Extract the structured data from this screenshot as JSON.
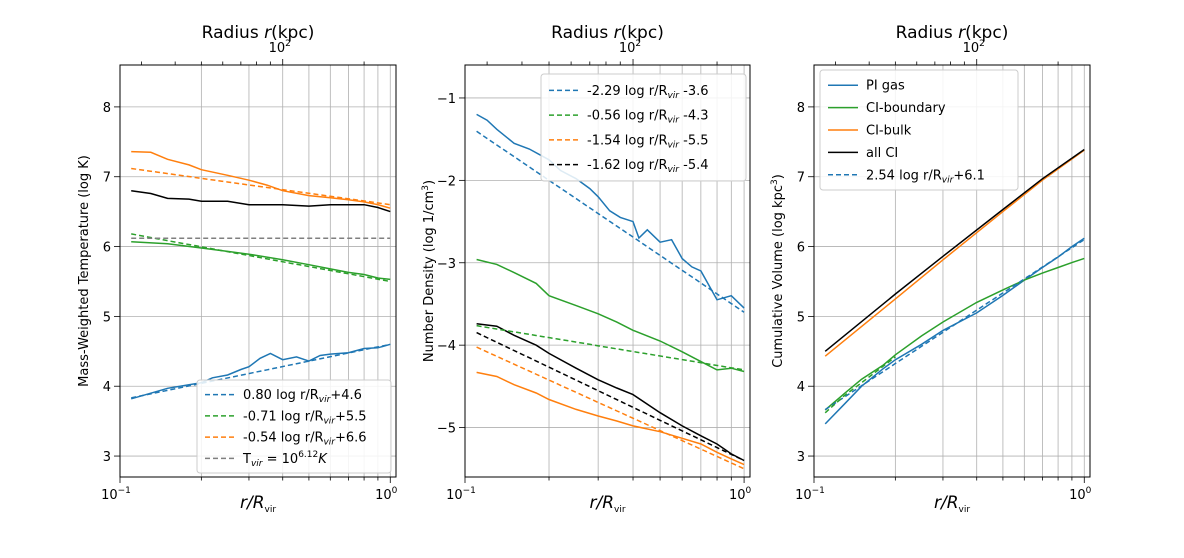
{
  "chart_data": [
    {
      "type": "line",
      "panel": "temperature",
      "title": "",
      "top_axis_label": "Radius r(kpc)",
      "top_axis_tick": "10^2",
      "xlabel": "r/R_vir",
      "ylabel": "Mass-Weighted Temperature (log K)",
      "xscale": "log",
      "xlim": [
        0.1,
        1.05
      ],
      "ylim": [
        2.7,
        8.6
      ],
      "yticks": [
        3,
        4,
        5,
        6,
        7,
        8
      ],
      "xtick_labels": [
        "10^-1",
        "10^0"
      ],
      "legend_position": "lower-right",
      "series": [
        {
          "name": "PI gas",
          "color": "#1f77b4",
          "style": "solid",
          "x": [
            0.11,
            0.13,
            0.15,
            0.18,
            0.2,
            0.22,
            0.25,
            0.28,
            0.3,
            0.33,
            0.36,
            0.4,
            0.45,
            0.5,
            0.55,
            0.6,
            0.7,
            0.8,
            0.9,
            1.0
          ],
          "y": [
            3.82,
            3.9,
            3.97,
            4.02,
            4.05,
            4.12,
            4.16,
            4.24,
            4.28,
            4.4,
            4.47,
            4.38,
            4.42,
            4.36,
            4.44,
            4.46,
            4.48,
            4.54,
            4.55,
            4.6
          ]
        },
        {
          "name": "CI-boundary",
          "color": "#2ca02c",
          "style": "solid",
          "x": [
            0.11,
            0.15,
            0.2,
            0.25,
            0.3,
            0.4,
            0.5,
            0.6,
            0.7,
            0.8,
            0.9,
            1.0
          ],
          "y": [
            6.07,
            6.04,
            5.98,
            5.93,
            5.89,
            5.81,
            5.74,
            5.68,
            5.63,
            5.6,
            5.55,
            5.53
          ]
        },
        {
          "name": "CI-bulk",
          "color": "#ff7f0e",
          "style": "solid",
          "x": [
            0.11,
            0.13,
            0.15,
            0.18,
            0.2,
            0.25,
            0.3,
            0.35,
            0.4,
            0.5,
            0.6,
            0.7,
            0.8,
            0.9,
            1.0
          ],
          "y": [
            7.36,
            7.35,
            7.25,
            7.17,
            7.1,
            7.02,
            6.95,
            6.88,
            6.8,
            6.73,
            6.7,
            6.67,
            6.64,
            6.6,
            6.55
          ]
        },
        {
          "name": "all CI",
          "color": "#000000",
          "style": "solid",
          "x": [
            0.11,
            0.13,
            0.15,
            0.18,
            0.2,
            0.25,
            0.3,
            0.4,
            0.5,
            0.6,
            0.7,
            0.8,
            0.9,
            1.0
          ],
          "y": [
            6.8,
            6.76,
            6.69,
            6.68,
            6.65,
            6.65,
            6.6,
            6.6,
            6.58,
            6.6,
            6.6,
            6.6,
            6.56,
            6.5
          ]
        },
        {
          "name": "0.80 log r/R_vir +4.6",
          "color": "#1f77b4",
          "style": "dashed",
          "fit": [
            0.8,
            4.6
          ]
        },
        {
          "name": "-0.71 log r/R_vir +5.5",
          "color": "#2ca02c",
          "style": "dashed",
          "fit": [
            -0.71,
            5.5
          ]
        },
        {
          "name": "-0.54 log r/R_vir +6.6",
          "color": "#ff7f0e",
          "style": "dashed",
          "fit": [
            -0.54,
            6.6
          ]
        },
        {
          "name": "T_vir = 10^6.12 K",
          "color": "#7f7f7f",
          "style": "dashed",
          "fit": [
            0,
            6.12
          ]
        }
      ],
      "legend": [
        {
          "label": "0.80 log r/R",
          "sub": "vir",
          "tail": "+4.6",
          "color": "#1f77b4",
          "style": "dashed"
        },
        {
          "label": "-0.71 log r/R",
          "sub": "vir",
          "tail": "+5.5",
          "color": "#2ca02c",
          "style": "dashed"
        },
        {
          "label": "-0.54 log r/R",
          "sub": "vir",
          "tail": "+6.6",
          "color": "#ff7f0e",
          "style": "dashed"
        },
        {
          "label": "T",
          "sub": "vir",
          "tail": " = 10",
          "sup": "6.12",
          "tail2": "K",
          "color": "#7f7f7f",
          "style": "dashed"
        }
      ]
    },
    {
      "type": "line",
      "panel": "density",
      "title": "",
      "top_axis_label": "Radius r(kpc)",
      "top_axis_tick": "10^2",
      "xlabel": "r/R_vir",
      "ylabel": "Number Density (log 1/cm^3)",
      "xscale": "log",
      "xlim": [
        0.1,
        1.05
      ],
      "ylim": [
        -5.6,
        -0.6
      ],
      "yticks": [
        -5,
        -4,
        -3,
        -2,
        -1
      ],
      "xtick_labels": [
        "10^-1",
        "10^0"
      ],
      "legend_position": "top-right",
      "series": [
        {
          "name": "PI gas",
          "color": "#1f77b4",
          "style": "solid",
          "x": [
            0.11,
            0.12,
            0.13,
            0.15,
            0.17,
            0.2,
            0.22,
            0.25,
            0.28,
            0.3,
            0.33,
            0.36,
            0.4,
            0.42,
            0.45,
            0.5,
            0.55,
            0.6,
            0.65,
            0.7,
            0.8,
            0.9,
            1.0
          ],
          "y": [
            -1.2,
            -1.27,
            -1.38,
            -1.55,
            -1.62,
            -1.75,
            -1.88,
            -1.98,
            -2.1,
            -2.2,
            -2.37,
            -2.45,
            -2.5,
            -2.7,
            -2.6,
            -2.75,
            -2.72,
            -2.95,
            -3.05,
            -3.1,
            -3.45,
            -3.4,
            -3.55
          ]
        },
        {
          "name": "CI-boundary",
          "color": "#2ca02c",
          "style": "solid",
          "x": [
            0.11,
            0.13,
            0.15,
            0.18,
            0.2,
            0.25,
            0.3,
            0.35,
            0.4,
            0.5,
            0.6,
            0.7,
            0.8,
            0.9,
            1.0
          ],
          "y": [
            -2.96,
            -3.02,
            -3.12,
            -3.25,
            -3.4,
            -3.52,
            -3.62,
            -3.72,
            -3.82,
            -3.95,
            -4.08,
            -4.2,
            -4.3,
            -4.28,
            -4.32
          ]
        },
        {
          "name": "CI-bulk",
          "color": "#ff7f0e",
          "style": "solid",
          "x": [
            0.11,
            0.13,
            0.15,
            0.18,
            0.2,
            0.25,
            0.3,
            0.35,
            0.4,
            0.5,
            0.6,
            0.7,
            0.8,
            0.9,
            1.0
          ],
          "y": [
            -4.33,
            -4.38,
            -4.48,
            -4.58,
            -4.66,
            -4.78,
            -4.86,
            -4.92,
            -4.98,
            -5.05,
            -5.13,
            -5.2,
            -5.3,
            -5.38,
            -5.45
          ]
        },
        {
          "name": "all CI",
          "color": "#000000",
          "style": "solid",
          "x": [
            0.11,
            0.13,
            0.15,
            0.18,
            0.2,
            0.25,
            0.3,
            0.35,
            0.4,
            0.5,
            0.6,
            0.7,
            0.8,
            0.9,
            1.0
          ],
          "y": [
            -3.74,
            -3.77,
            -3.88,
            -4.0,
            -4.1,
            -4.28,
            -4.42,
            -4.52,
            -4.6,
            -4.82,
            -4.98,
            -5.1,
            -5.2,
            -5.32,
            -5.4
          ]
        },
        {
          "name": "-2.29 log r/R_vir -3.6",
          "color": "#1f77b4",
          "style": "dashed",
          "fit": [
            -2.29,
            -3.6
          ]
        },
        {
          "name": "-0.56 log r/R_vir -4.3",
          "color": "#2ca02c",
          "style": "dashed",
          "fit": [
            -0.56,
            -4.3
          ]
        },
        {
          "name": "-1.54 log r/R_vir -5.5",
          "color": "#ff7f0e",
          "style": "dashed",
          "fit": [
            -1.54,
            -5.5
          ]
        },
        {
          "name": "-1.62 log r/R_vir -5.4",
          "color": "#000000",
          "style": "dashed",
          "fit": [
            -1.62,
            -5.4
          ]
        }
      ],
      "legend": [
        {
          "label": "-2.29 log r/R",
          "sub": "vir",
          "tail": " -3.6",
          "color": "#1f77b4",
          "style": "dashed"
        },
        {
          "label": "-0.56 log r/R",
          "sub": "vir",
          "tail": " -4.3",
          "color": "#2ca02c",
          "style": "dashed"
        },
        {
          "label": "-1.54 log r/R",
          "sub": "vir",
          "tail": " -5.5",
          "color": "#ff7f0e",
          "style": "dashed"
        },
        {
          "label": "-1.62 log r/R",
          "sub": "vir",
          "tail": " -5.4",
          "color": "#000000",
          "style": "dashed"
        }
      ]
    },
    {
      "type": "line",
      "panel": "volume",
      "title": "",
      "top_axis_label": "Radius r(kpc)",
      "top_axis_tick": "10^2",
      "xlabel": "r/R_vir",
      "ylabel": "Cumulative Volume (log kpc^3)",
      "xscale": "log",
      "xlim": [
        0.1,
        1.05
      ],
      "ylim": [
        2.7,
        8.6
      ],
      "yticks": [
        3,
        4,
        5,
        6,
        7,
        8
      ],
      "xtick_labels": [
        "10^-1",
        "10^0"
      ],
      "legend_position": "top-left",
      "series": [
        {
          "name": "PI gas",
          "color": "#1f77b4",
          "style": "solid",
          "x": [
            0.11,
            0.13,
            0.15,
            0.18,
            0.2,
            0.25,
            0.3,
            0.4,
            0.5,
            0.6,
            0.7,
            0.8,
            0.9,
            1.0
          ],
          "y": [
            3.46,
            3.75,
            4.0,
            4.25,
            4.38,
            4.6,
            4.8,
            5.05,
            5.3,
            5.52,
            5.7,
            5.85,
            6.0,
            6.12
          ]
        },
        {
          "name": "CI-boundary",
          "color": "#2ca02c",
          "style": "solid",
          "x": [
            0.11,
            0.13,
            0.15,
            0.18,
            0.2,
            0.25,
            0.3,
            0.4,
            0.5,
            0.6,
            0.7,
            0.8,
            0.9,
            1.0
          ],
          "y": [
            3.66,
            3.9,
            4.1,
            4.3,
            4.45,
            4.72,
            4.92,
            5.2,
            5.38,
            5.52,
            5.62,
            5.7,
            5.77,
            5.83
          ]
        },
        {
          "name": "CI-bulk",
          "color": "#ff7f0e",
          "style": "solid",
          "x": [
            0.11,
            0.2,
            0.3,
            0.5,
            0.7,
            1.0
          ],
          "y": [
            4.43,
            5.25,
            5.81,
            6.5,
            6.95,
            7.38
          ]
        },
        {
          "name": "all CI",
          "color": "#000000",
          "style": "solid",
          "x": [
            0.11,
            0.2,
            0.3,
            0.5,
            0.7,
            1.0
          ],
          "y": [
            4.5,
            5.32,
            5.86,
            6.53,
            6.97,
            7.39
          ]
        },
        {
          "name": "2.54 log r/R_vir +6.1",
          "color": "#1f77b4",
          "style": "dashed",
          "fit": [
            2.54,
            6.1
          ]
        },
        {
          "name": "green-dashed-fit",
          "color": "#2ca02c",
          "style": "dashed",
          "x": [
            0.11,
            0.13,
            0.15,
            0.2
          ],
          "y": [
            3.62,
            3.87,
            4.05,
            4.42
          ]
        }
      ],
      "legend": [
        {
          "label": "PI gas",
          "color": "#1f77b4",
          "style": "solid"
        },
        {
          "label": "CI-boundary",
          "color": "#2ca02c",
          "style": "solid"
        },
        {
          "label": "CI-bulk",
          "color": "#ff7f0e",
          "style": "solid"
        },
        {
          "label": "all CI",
          "color": "#000000",
          "style": "solid"
        },
        {
          "label": " 2.54 log r/R",
          "sub": "vir",
          "tail": "+6.1",
          "color": "#1f77b4",
          "style": "dashed"
        }
      ]
    }
  ]
}
